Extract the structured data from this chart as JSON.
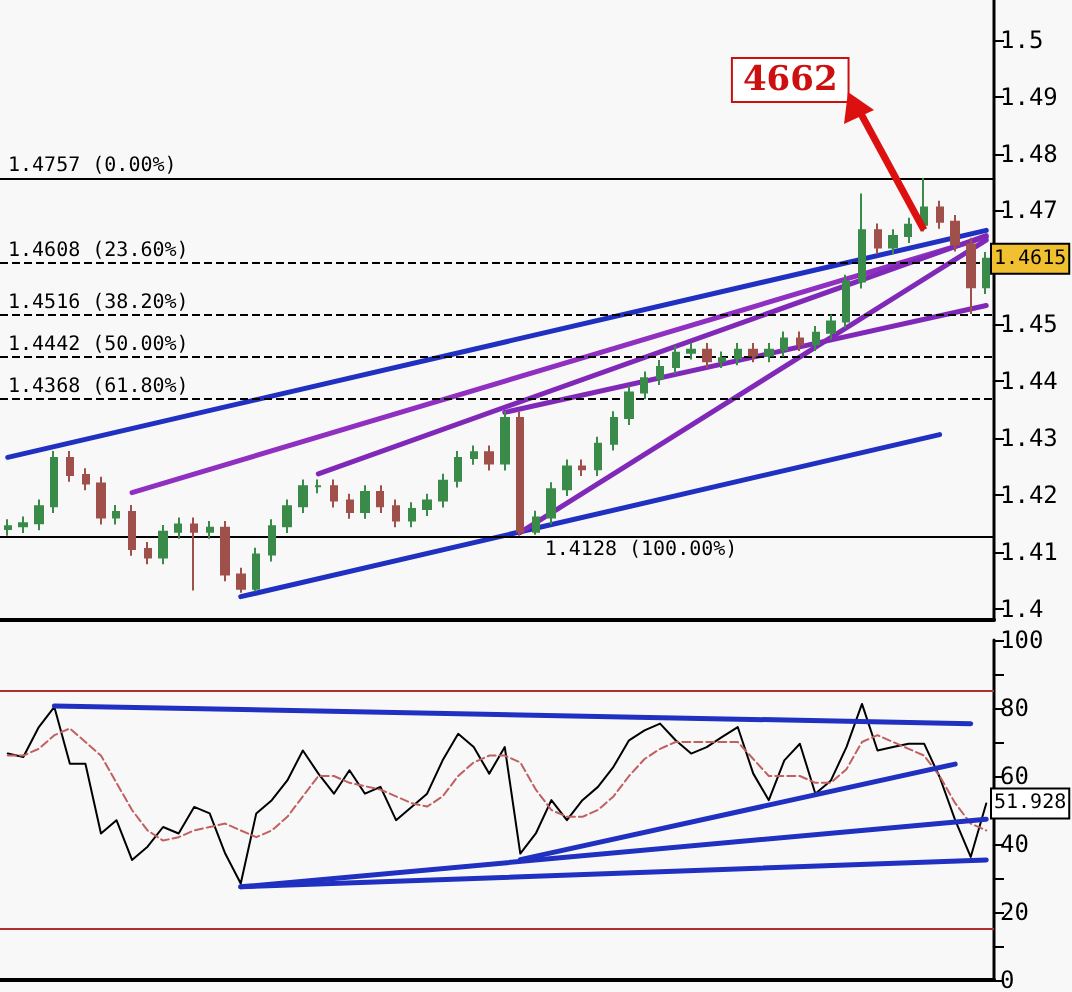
{
  "chart_data": [
    {
      "type": "candlestick",
      "categories": [
        null,
        null,
        null,
        null,
        null,
        null,
        null,
        null,
        null,
        null,
        null,
        null,
        null,
        null,
        null,
        null,
        null,
        null,
        null,
        null,
        null,
        null,
        null,
        null,
        null,
        null,
        null,
        null,
        null,
        null,
        null,
        null,
        null,
        null,
        null,
        null,
        null,
        null,
        null,
        null,
        null,
        null,
        null,
        null,
        null,
        null,
        null,
        null,
        null,
        null,
        null,
        null,
        null,
        null,
        null,
        null,
        null,
        null,
        null,
        null,
        null,
        null,
        null,
        null
      ],
      "ohlc": [
        [
          1.414,
          1.4157,
          1.4128,
          1.4145
        ],
        [
          1.4145,
          1.4162,
          1.4133,
          1.415
        ],
        [
          1.415,
          1.4192,
          1.4138,
          1.418
        ],
        [
          1.418,
          1.4277,
          1.4168,
          1.4265
        ],
        [
          1.4265,
          1.4277,
          1.4223,
          1.4235
        ],
        [
          1.4235,
          1.4247,
          1.4208,
          1.422
        ],
        [
          1.422,
          1.4232,
          1.4148,
          1.416
        ],
        [
          1.416,
          1.4182,
          1.4148,
          1.417
        ],
        [
          1.417,
          1.4182,
          1.4093,
          1.4105
        ],
        [
          1.4105,
          1.4117,
          1.4078,
          1.409
        ],
        [
          1.409,
          1.4147,
          1.4078,
          1.4135
        ],
        [
          1.4135,
          1.416,
          1.4123,
          1.4148
        ],
        [
          1.4148,
          1.416,
          1.4032,
          1.4135
        ],
        [
          1.4135,
          1.4154,
          1.4123,
          1.4142
        ],
        [
          1.4142,
          1.4154,
          1.4048,
          1.406
        ],
        [
          1.406,
          1.4072,
          1.4028,
          1.4035
        ],
        [
          1.4035,
          1.4107,
          1.403,
          1.4095
        ],
        [
          1.4095,
          1.4157,
          1.4083,
          1.4145
        ],
        [
          1.4145,
          1.4192,
          1.4133,
          1.418
        ],
        [
          1.418,
          1.4227,
          1.4168,
          1.4215
        ],
        [
          1.4215,
          1.4227,
          1.4203,
          1.4215
        ],
        [
          1.4215,
          1.4227,
          1.4178,
          1.419
        ],
        [
          1.419,
          1.4202,
          1.4158,
          1.417
        ],
        [
          1.417,
          1.4217,
          1.4158,
          1.4205
        ],
        [
          1.4205,
          1.4217,
          1.4168,
          1.418
        ],
        [
          1.418,
          1.4192,
          1.4143,
          1.4155
        ],
        [
          1.4155,
          1.4187,
          1.4143,
          1.4175
        ],
        [
          1.4175,
          1.4202,
          1.4163,
          1.419
        ],
        [
          1.419,
          1.4237,
          1.4178,
          1.4225
        ],
        [
          1.4225,
          1.4277,
          1.4213,
          1.4265
        ],
        [
          1.4265,
          1.4287,
          1.4253,
          1.4275
        ],
        [
          1.4275,
          1.4287,
          1.4243,
          1.4255
        ],
        [
          1.4255,
          1.4347,
          1.4243,
          1.4335
        ],
        [
          1.4335,
          1.4347,
          1.4128,
          1.4135
        ],
        [
          1.4135,
          1.4172,
          1.413,
          1.416
        ],
        [
          1.416,
          1.4222,
          1.4148,
          1.421
        ],
        [
          1.421,
          1.4262,
          1.4198,
          1.425
        ],
        [
          1.425,
          1.4262,
          1.4233,
          1.4245
        ],
        [
          1.4245,
          1.4302,
          1.4233,
          1.429
        ],
        [
          1.429,
          1.4347,
          1.4278,
          1.4335
        ],
        [
          1.4335,
          1.4392,
          1.4323,
          1.438
        ],
        [
          1.438,
          1.4417,
          1.4368,
          1.4405
        ],
        [
          1.4405,
          1.4437,
          1.4393,
          1.4425
        ],
        [
          1.4425,
          1.4462,
          1.4413,
          1.445
        ],
        [
          1.445,
          1.4467,
          1.4438,
          1.4455
        ],
        [
          1.4455,
          1.4467,
          1.4423,
          1.4435
        ],
        [
          1.4435,
          1.4452,
          1.4423,
          1.444
        ],
        [
          1.444,
          1.4467,
          1.4428,
          1.4455
        ],
        [
          1.4455,
          1.4467,
          1.4433,
          1.4445
        ],
        [
          1.4445,
          1.4467,
          1.4433,
          1.4455
        ],
        [
          1.4455,
          1.4487,
          1.4443,
          1.4475
        ],
        [
          1.4475,
          1.4487,
          1.4453,
          1.4465
        ],
        [
          1.4465,
          1.4497,
          1.4453,
          1.4485
        ],
        [
          1.4485,
          1.4517,
          1.4473,
          1.4505
        ],
        [
          1.4505,
          1.4587,
          1.4493,
          1.4575
        ],
        [
          1.4575,
          1.473,
          1.4563,
          1.4665
        ],
        [
          1.4665,
          1.4677,
          1.4623,
          1.4635
        ],
        [
          1.4635,
          1.4667,
          1.4623,
          1.4655
        ],
        [
          1.4655,
          1.4687,
          1.4643,
          1.4675
        ],
        [
          1.4675,
          1.4757,
          1.4663,
          1.4705
        ],
        [
          1.4705,
          1.4717,
          1.4668,
          1.468
        ],
        [
          1.468,
          1.4692,
          1.4628,
          1.464
        ],
        [
          1.464,
          1.4652,
          1.4518,
          1.4565
        ],
        [
          1.4565,
          1.4627,
          1.4553,
          1.4615
        ]
      ],
      "colors": [
        "#3a8a4a",
        "#3a8a4a",
        "#3a8a4a",
        "#3a8a4a",
        "#a0504a",
        "#a0504a",
        "#a0504a",
        "#3a8a4a",
        "#a0504a",
        "#a0504a",
        "#3a8a4a",
        "#3a8a4a",
        "#a0504a",
        "#3a8a4a",
        "#a0504a",
        "#a0504a",
        "#3a8a4a",
        "#3a8a4a",
        "#3a8a4a",
        "#3a8a4a",
        "#3a8a4a",
        "#a0504a",
        "#a0504a",
        "#3a8a4a",
        "#a0504a",
        "#a0504a",
        "#3a8a4a",
        "#3a8a4a",
        "#3a8a4a",
        "#3a8a4a",
        "#3a8a4a",
        "#a0504a",
        "#3a8a4a",
        "#a0504a",
        "#3a8a4a",
        "#3a8a4a",
        "#3a8a4a",
        "#a0504a",
        "#3a8a4a",
        "#3a8a4a",
        "#3a8a4a",
        "#3a8a4a",
        "#3a8a4a",
        "#3a8a4a",
        "#3a8a4a",
        "#a0504a",
        "#3a8a4a",
        "#3a8a4a",
        "#a0504a",
        "#3a8a4a",
        "#3a8a4a",
        "#a0504a",
        "#3a8a4a",
        "#3a8a4a",
        "#3a8a4a",
        "#3a8a4a",
        "#a0504a",
        "#3a8a4a",
        "#3a8a4a",
        "#3a8a4a",
        "#a0504a",
        "#a0504a",
        "#a0504a",
        "#3a8a4a"
      ],
      "value_labels": [
        null,
        null,
        null,
        null,
        null,
        null,
        null,
        null,
        null,
        null,
        null,
        null,
        null,
        null,
        null,
        null,
        null,
        null,
        null,
        null,
        null,
        null,
        null,
        null,
        null,
        null,
        null,
        null,
        null,
        null,
        null,
        null,
        null,
        null,
        null,
        null,
        null,
        null,
        null,
        null,
        null,
        null,
        null,
        null,
        null,
        null,
        null,
        null,
        null,
        null,
        null,
        null,
        null,
        null,
        null,
        null,
        null,
        null,
        null,
        null,
        null,
        null,
        null,
        "1.4615"
      ],
      "series": [
        {
          "type": "line",
          "color": "#2030c0",
          "values": [
            1.4266,
            null,
            null,
            null,
            null,
            null,
            null,
            null,
            null,
            null,
            null,
            null,
            null,
            null,
            null,
            null,
            null,
            null,
            null,
            null,
            null,
            null,
            null,
            null,
            null,
            null,
            null,
            null,
            null,
            null,
            null,
            null,
            null,
            null,
            null,
            null,
            null,
            null,
            null,
            null,
            null,
            null,
            null,
            null,
            null,
            null,
            null,
            null,
            null,
            null,
            null,
            null,
            null,
            null,
            null,
            null,
            null,
            null,
            null,
            null,
            null,
            null,
            null,
            1.4665
          ]
        },
        {
          "type": "line",
          "color": "#2030c0",
          "values": [
            null,
            null,
            null,
            null,
            null,
            null,
            null,
            null,
            null,
            null,
            null,
            null,
            null,
            null,
            null,
            1.4021,
            null,
            null,
            null,
            null,
            null,
            null,
            null,
            null,
            null,
            null,
            null,
            null,
            null,
            null,
            null,
            null,
            null,
            null,
            null,
            null,
            null,
            null,
            null,
            null,
            null,
            null,
            null,
            null,
            null,
            null,
            null,
            null,
            null,
            null,
            null,
            null,
            null,
            null,
            null,
            null,
            null,
            null,
            null,
            null,
            1.4306,
            null,
            null,
            null
          ]
        },
        {
          "type": "line",
          "color": "#9030c0",
          "values": [
            null,
            null,
            null,
            null,
            null,
            null,
            null,
            null,
            1.4204,
            null,
            null,
            null,
            null,
            null,
            null,
            null,
            null,
            null,
            null,
            null,
            null,
            null,
            null,
            null,
            null,
            null,
            null,
            null,
            null,
            null,
            null,
            null,
            null,
            null,
            null,
            null,
            null,
            null,
            null,
            null,
            null,
            null,
            null,
            null,
            null,
            null,
            null,
            null,
            null,
            null,
            null,
            null,
            null,
            null,
            null,
            null,
            null,
            null,
            null,
            null,
            null,
            null,
            null,
            1.4653
          ]
        },
        {
          "type": "line",
          "color": "#8028b8",
          "values": [
            null,
            null,
            null,
            null,
            null,
            null,
            null,
            null,
            null,
            null,
            null,
            null,
            null,
            null,
            null,
            null,
            null,
            null,
            null,
            null,
            1.4237,
            null,
            null,
            null,
            null,
            null,
            null,
            null,
            null,
            null,
            null,
            null,
            null,
            null,
            null,
            null,
            null,
            null,
            null,
            null,
            null,
            null,
            null,
            null,
            null,
            null,
            null,
            null,
            null,
            null,
            null,
            null,
            null,
            null,
            null,
            null,
            null,
            null,
            null,
            null,
            null,
            null,
            null,
            1.4656
          ]
        },
        {
          "type": "line",
          "color": "#8028b8",
          "values": [
            null,
            null,
            null,
            null,
            null,
            null,
            null,
            null,
            null,
            null,
            null,
            null,
            null,
            null,
            null,
            null,
            null,
            null,
            null,
            null,
            null,
            null,
            null,
            null,
            null,
            null,
            null,
            null,
            null,
            null,
            null,
            null,
            null,
            1.4134,
            null,
            null,
            null,
            null,
            null,
            null,
            null,
            null,
            null,
            null,
            null,
            null,
            null,
            null,
            null,
            null,
            null,
            null,
            null,
            null,
            null,
            null,
            null,
            null,
            null,
            null,
            null,
            null,
            null,
            1.4648
          ]
        },
        {
          "type": "line",
          "color": "#8028b8",
          "values": [
            null,
            null,
            null,
            null,
            null,
            null,
            null,
            null,
            null,
            null,
            null,
            null,
            null,
            null,
            null,
            null,
            null,
            null,
            null,
            null,
            null,
            null,
            null,
            null,
            null,
            null,
            null,
            null,
            null,
            null,
            null,
            null,
            1.4345,
            null,
            null,
            null,
            null,
            null,
            null,
            null,
            null,
            null,
            null,
            null,
            null,
            null,
            null,
            null,
            null,
            null,
            null,
            null,
            null,
            null,
            null,
            null,
            null,
            null,
            null,
            null,
            null,
            null,
            null,
            1.4533
          ]
        }
      ],
      "ylim": [
        1.398,
        1.507
      ],
      "yticks": [
        1.4,
        1.41,
        1.42,
        1.43,
        1.44,
        1.45,
        {
          "value": 1.46,
          "label": null
        },
        1.47,
        1.48,
        1.49,
        1.5
      ],
      "ref_lines": [
        {
          "axis": "y",
          "value": 1.4757,
          "label": "1.4757 (0.00%)",
          "color": "#000000",
          "line_style": "solid"
        },
        {
          "axis": "y",
          "value": 1.4608,
          "label": "1.4608 (23.60%)",
          "color": "#000000",
          "line_style": "dashed"
        },
        {
          "axis": "y",
          "value": 1.4516,
          "label": "1.4516 (38.20%)",
          "color": "#000000",
          "line_style": "dashed"
        },
        {
          "axis": "y",
          "value": 1.4442,
          "label": "1.4442 (50.00%)",
          "color": "#000000",
          "line_style": "dashed"
        },
        {
          "axis": "y",
          "value": 1.4368,
          "label": "1.4368 (61.80%)",
          "color": "#000000",
          "line_style": "dashed"
        },
        {
          "axis": "y",
          "value": 1.4128,
          "label": "1.4128 (100.00%)",
          "color": "#000000",
          "line_style": "solid"
        }
      ],
      "annotations": [
        "4662"
      ],
      "marker": "none",
      "grid": false,
      "tick_labels": "y"
    },
    {
      "type": "line",
      "categories": [
        null,
        null,
        null,
        null,
        null,
        null,
        null,
        null,
        null,
        null,
        null,
        null,
        null,
        null,
        null,
        null,
        null,
        null,
        null,
        null,
        null,
        null,
        null,
        null,
        null,
        null,
        null,
        null,
        null,
        null,
        null,
        null,
        null,
        null,
        null,
        null,
        null,
        null,
        null,
        null,
        null,
        null,
        null,
        null,
        null,
        null,
        null,
        null,
        null,
        null,
        null,
        null,
        null,
        null,
        null,
        null,
        null,
        null,
        null,
        null,
        null,
        null,
        null,
        null
      ],
      "series": [
        {
          "color": "#000000",
          "line_style": "solid",
          "values": [
            66.6,
            65.6,
            74.4,
            80.3,
            63.6,
            63.6,
            43.1,
            47,
            35.3,
            39.2,
            45,
            43.1,
            50.9,
            49,
            37.2,
            28.4,
            49,
            52.9,
            58.7,
            67.5,
            60.7,
            54.8,
            61.7,
            54.8,
            56.8,
            47,
            50.9,
            54.8,
            64.6,
            72.4,
            68.5,
            60.7,
            68.5,
            37.2,
            43.1,
            52.9,
            47,
            52.9,
            56.8,
            62.7,
            70.5,
            73.4,
            75.4,
            70.5,
            66.6,
            68.5,
            71.5,
            74.4,
            60.7,
            52.9,
            64.6,
            69.5,
            54.8,
            58.7,
            68.5,
            81.2,
            67.5,
            68.5,
            69.5,
            69.5,
            59.7,
            47,
            36.2,
            51.928
          ],
          "value_labels": [
            null,
            null,
            null,
            null,
            null,
            null,
            null,
            null,
            null,
            null,
            null,
            null,
            null,
            null,
            null,
            null,
            null,
            null,
            null,
            null,
            null,
            null,
            null,
            null,
            null,
            null,
            null,
            null,
            null,
            null,
            null,
            null,
            null,
            null,
            null,
            null,
            null,
            null,
            null,
            null,
            null,
            null,
            null,
            null,
            null,
            null,
            null,
            null,
            null,
            null,
            null,
            null,
            null,
            null,
            null,
            null,
            null,
            null,
            null,
            null,
            null,
            null,
            null,
            "51.928"
          ]
        },
        {
          "color": "#c06060",
          "line_style": "dashed",
          "values": [
            66,
            66,
            68,
            72,
            74,
            70,
            66,
            58,
            50,
            44,
            41,
            42,
            44,
            45,
            46,
            44,
            42,
            44,
            48,
            54,
            60,
            60,
            58,
            57,
            56,
            54,
            52,
            51,
            54,
            60,
            64,
            66,
            66,
            64,
            56,
            50,
            48,
            48,
            50,
            54,
            60,
            65,
            68,
            70,
            70,
            70,
            70,
            70,
            65,
            60,
            60,
            60,
            58,
            58,
            62,
            70,
            72,
            70,
            68,
            66,
            60,
            52,
            46,
            44
          ]
        },
        {
          "color": "#2030c0",
          "line_style": "solid",
          "values": [
            null,
            null,
            null,
            80.6,
            null,
            null,
            null,
            null,
            null,
            null,
            null,
            null,
            null,
            null,
            null,
            null,
            null,
            null,
            null,
            null,
            null,
            null,
            null,
            null,
            null,
            null,
            null,
            null,
            null,
            null,
            null,
            null,
            null,
            null,
            null,
            null,
            null,
            null,
            null,
            null,
            null,
            null,
            null,
            null,
            null,
            null,
            null,
            null,
            null,
            null,
            null,
            null,
            null,
            null,
            null,
            null,
            null,
            null,
            null,
            null,
            null,
            null,
            75.4,
            null
          ]
        },
        {
          "color": "#2030c0",
          "line_style": "solid",
          "values": [
            null,
            null,
            null,
            null,
            null,
            null,
            null,
            null,
            null,
            null,
            null,
            null,
            null,
            null,
            null,
            27.4,
            null,
            null,
            null,
            null,
            null,
            null,
            null,
            null,
            null,
            null,
            null,
            null,
            null,
            null,
            null,
            null,
            null,
            null,
            null,
            null,
            null,
            null,
            null,
            null,
            null,
            null,
            null,
            null,
            null,
            null,
            null,
            null,
            null,
            null,
            null,
            null,
            null,
            null,
            null,
            null,
            null,
            null,
            null,
            null,
            null,
            null,
            null,
            47.3
          ]
        },
        {
          "color": "#2030c0",
          "line_style": "solid",
          "values": [
            null,
            null,
            null,
            null,
            null,
            null,
            null,
            null,
            null,
            null,
            null,
            null,
            null,
            null,
            null,
            27.4,
            null,
            null,
            null,
            null,
            null,
            null,
            null,
            null,
            null,
            null,
            null,
            null,
            null,
            null,
            null,
            null,
            null,
            null,
            null,
            null,
            null,
            null,
            null,
            null,
            null,
            null,
            null,
            null,
            null,
            null,
            null,
            null,
            null,
            null,
            null,
            null,
            null,
            null,
            null,
            null,
            null,
            null,
            null,
            null,
            null,
            null,
            null,
            35.3
          ]
        },
        {
          "color": "#2030c0",
          "line_style": "solid",
          "values": [
            null,
            null,
            null,
            null,
            null,
            null,
            null,
            null,
            null,
            null,
            null,
            null,
            null,
            null,
            null,
            null,
            null,
            null,
            null,
            null,
            null,
            null,
            null,
            null,
            null,
            null,
            null,
            null,
            null,
            null,
            null,
            null,
            null,
            35.4,
            null,
            null,
            null,
            null,
            null,
            null,
            null,
            null,
            null,
            null,
            null,
            null,
            null,
            null,
            null,
            null,
            null,
            null,
            null,
            null,
            null,
            null,
            null,
            null,
            null,
            null,
            null,
            63.5,
            null,
            null
          ]
        }
      ],
      "ylim": [
        0,
        100
      ],
      "yticks": [
        0,
        {
          "value": 10,
          "label": null
        },
        20,
        {
          "value": 30,
          "label": null
        },
        40,
        {
          "value": 50,
          "label": null
        },
        60,
        {
          "value": 70,
          "label": null
        },
        80,
        {
          "value": 90,
          "label": null
        },
        100
      ],
      "ref_lines": [
        {
          "axis": "y",
          "value": 85,
          "color": "#b03030"
        },
        {
          "axis": "y",
          "value": 15,
          "color": "#b03030"
        }
      ],
      "marker": "none",
      "grid": false,
      "tick_labels": "y"
    }
  ]
}
